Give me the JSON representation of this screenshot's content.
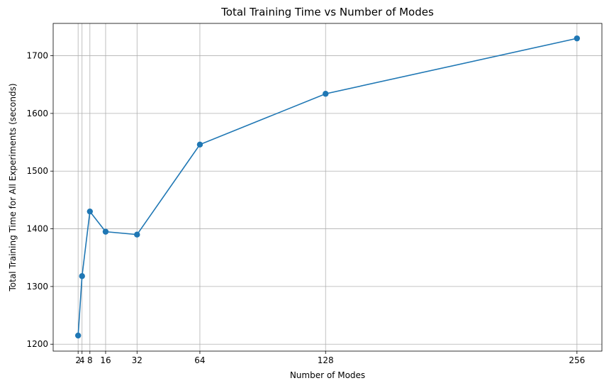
{
  "chart_data": {
    "type": "line",
    "title": "Total Training Time vs Number of Modes",
    "xlabel": "Number of Modes",
    "ylabel": "Total Training Time for All Experiments (seconds)",
    "x": [
      2,
      4,
      8,
      16,
      32,
      64,
      128,
      256
    ],
    "x_tick_labels": [
      "2",
      "4",
      "8",
      "16",
      "32",
      "64",
      "128",
      "256"
    ],
    "series": [
      {
        "values": [
          1215,
          1318,
          1430,
          1395,
          1390,
          1546,
          1634,
          1730
        ],
        "color": "#1f77b4",
        "marker": "circle"
      }
    ],
    "xlim": [
      -10.7,
      268.7
    ],
    "ylim": [
      1188,
      1756
    ],
    "y_ticks": [
      1200,
      1300,
      1400,
      1500,
      1600,
      1700
    ],
    "y_tick_labels": [
      "1200",
      "1300",
      "1400",
      "1500",
      "1600",
      "1700"
    ],
    "grid": true
  }
}
